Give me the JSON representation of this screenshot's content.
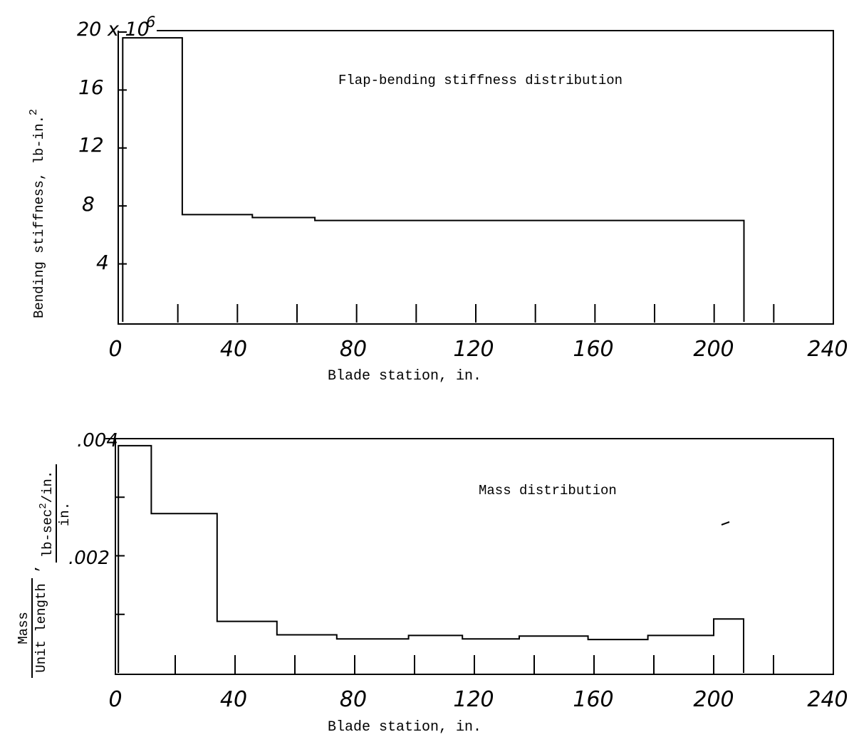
{
  "chart_data": [
    {
      "type": "line",
      "step": true,
      "title": "Flap-bending stiffness distribution",
      "xlabel": "Blade station, in.",
      "ylabel": "Bending stiffness, lb-in.",
      "ylabel_superscript": "2",
      "xlim": [
        0,
        240
      ],
      "ylim": [
        0,
        20
      ],
      "x_tick_labels": [
        "0",
        "40",
        "80",
        "120",
        "160",
        "200",
        "240"
      ],
      "y_tick_labels": [
        "4",
        "8",
        "12",
        "16",
        "20"
      ],
      "y_top_label": "20 x 10",
      "y_multiplier_exponent": "6",
      "series": [
        {
          "x": [
            1.5,
            1.5,
            21.5,
            21.5,
            45,
            45,
            66,
            66,
            210,
            210
          ],
          "y": [
            0,
            19.6,
            19.6,
            7.4,
            7.4,
            7.2,
            7.2,
            7.0,
            7.0,
            0
          ]
        }
      ]
    },
    {
      "type": "line",
      "step": true,
      "title": "Mass distribution",
      "xlabel": "Blade station, in.",
      "ylabel_numerator": "Mass",
      "ylabel_denominator": "Unit length",
      "ylabel_separator": ",",
      "yunit_numerator": "lb-sec",
      "yunit_superscript": "2",
      "yunit_numerator_tail": "/in.",
      "yunit_denominator": "in.",
      "xlim": [
        0,
        240
      ],
      "ylim": [
        0,
        0.004
      ],
      "x_tick_labels": [
        "0",
        "40",
        "80",
        "120",
        "160",
        "200",
        "240"
      ],
      "y_tick_labels": [
        ".002",
        ".004"
      ],
      "series": [
        {
          "x": [
            1,
            1,
            12,
            12,
            34,
            34,
            54,
            54,
            74,
            74,
            98,
            98,
            116,
            116,
            135,
            135,
            158,
            158,
            178,
            178,
            200,
            200,
            210,
            210
          ],
          "y": [
            0,
            0.00388,
            0.00388,
            0.00272,
            0.00272,
            0.00088,
            0.00088,
            0.00065,
            0.00065,
            0.00058,
            0.00058,
            0.00064,
            0.00064,
            0.00058,
            0.00058,
            0.00063,
            0.00063,
            0.00057,
            0.00057,
            0.00064,
            0.00064,
            0.00092,
            0.00092,
            0
          ]
        }
      ]
    }
  ]
}
